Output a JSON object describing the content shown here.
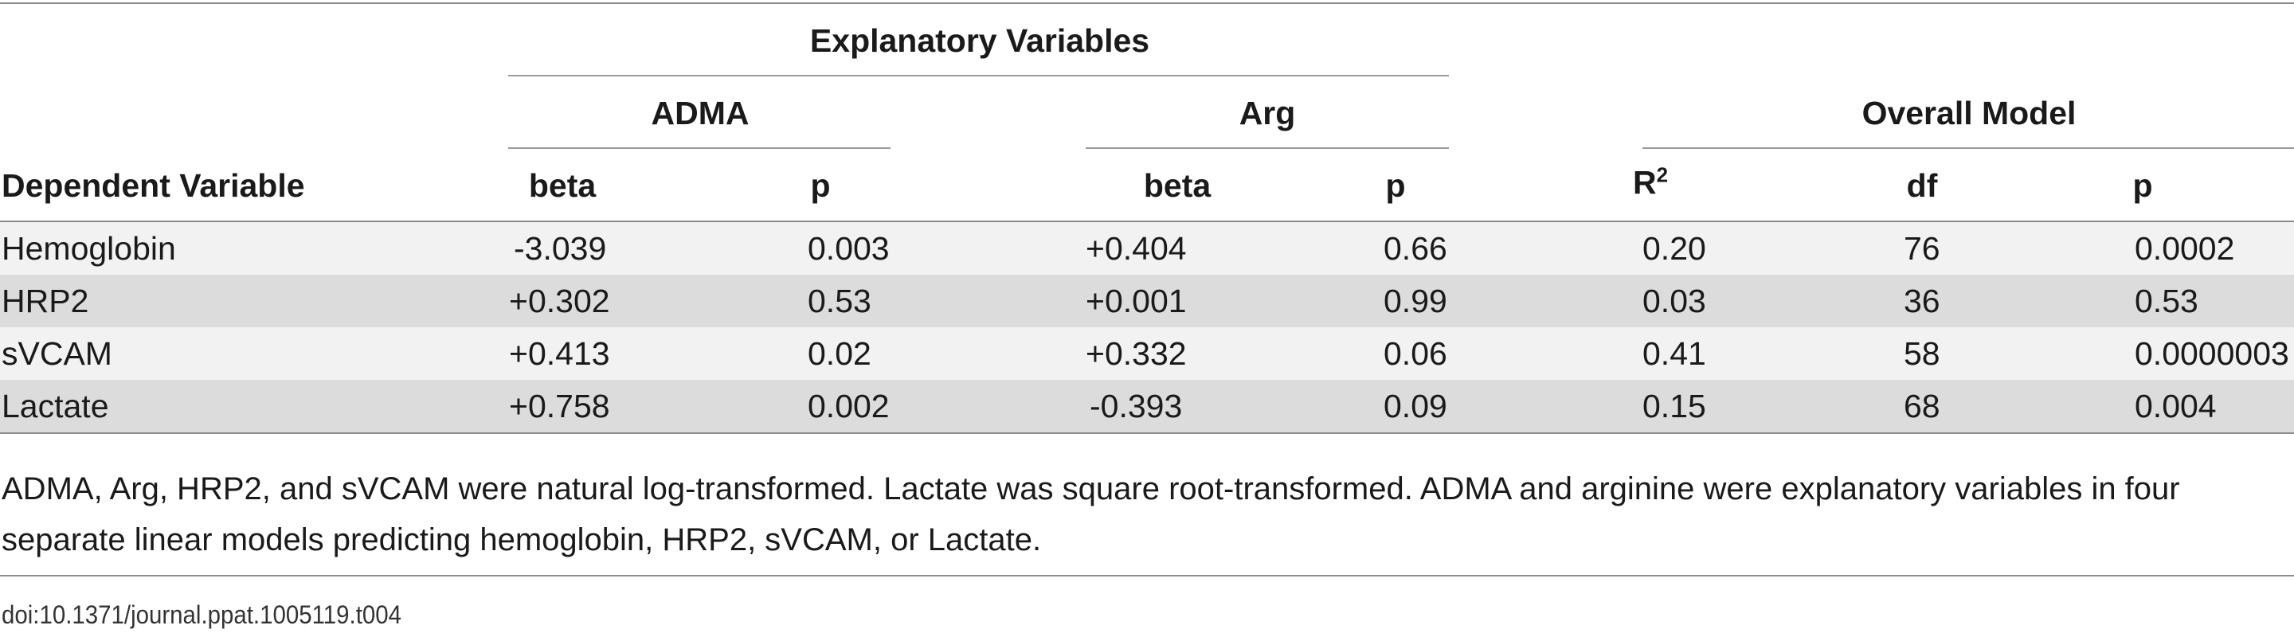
{
  "table": {
    "group_header": "Explanatory Variables",
    "subgroups": {
      "adma": "ADMA",
      "arg": "Arg",
      "overall": "Overall Model"
    },
    "columns": {
      "dependent": "Dependent Variable",
      "adma_beta": "beta",
      "adma_p": "p",
      "arg_beta": "beta",
      "arg_p": "p",
      "r2_base": "R",
      "r2_sup": "2",
      "df": "df",
      "overall_p": "p"
    },
    "rows": [
      {
        "dependent": "Hemoglobin",
        "adma_beta": "-3.039",
        "adma_p": "0.003",
        "arg_beta": "+0.404",
        "arg_p": "0.66",
        "r2": "0.20",
        "df": "76",
        "p": "0.0002"
      },
      {
        "dependent": "HRP2",
        "adma_beta": "+0.302",
        "adma_p": "0.53",
        "arg_beta": "+0.001",
        "arg_p": "0.99",
        "r2": "0.03",
        "df": "36",
        "p": "0.53"
      },
      {
        "dependent": "sVCAM",
        "adma_beta": "+0.413",
        "adma_p": "0.02",
        "arg_beta": "+0.332",
        "arg_p": "0.06",
        "r2": "0.41",
        "df": "58",
        "p": "0.0000003"
      },
      {
        "dependent": "Lactate",
        "adma_beta": "+0.758",
        "adma_p": "0.002",
        "arg_beta": "-0.393",
        "arg_p": "0.09",
        "r2": "0.15",
        "df": "68",
        "p": "0.004"
      }
    ]
  },
  "footnote": "ADMA, Arg, HRP2, and sVCAM were natural log-transformed. Lactate was square root-transformed. ADMA and arginine were explanatory variables in four separate linear models predicting hemoglobin, HRP2, sVCAM, or Lactate.",
  "doi": "doi:10.1371/journal.ppat.1005119.t004",
  "colors": {
    "stripe": "#dcdcdc",
    "light_row": "#f2f2f2",
    "rule": "#8c8c8c",
    "text": "#1a1a1a"
  }
}
